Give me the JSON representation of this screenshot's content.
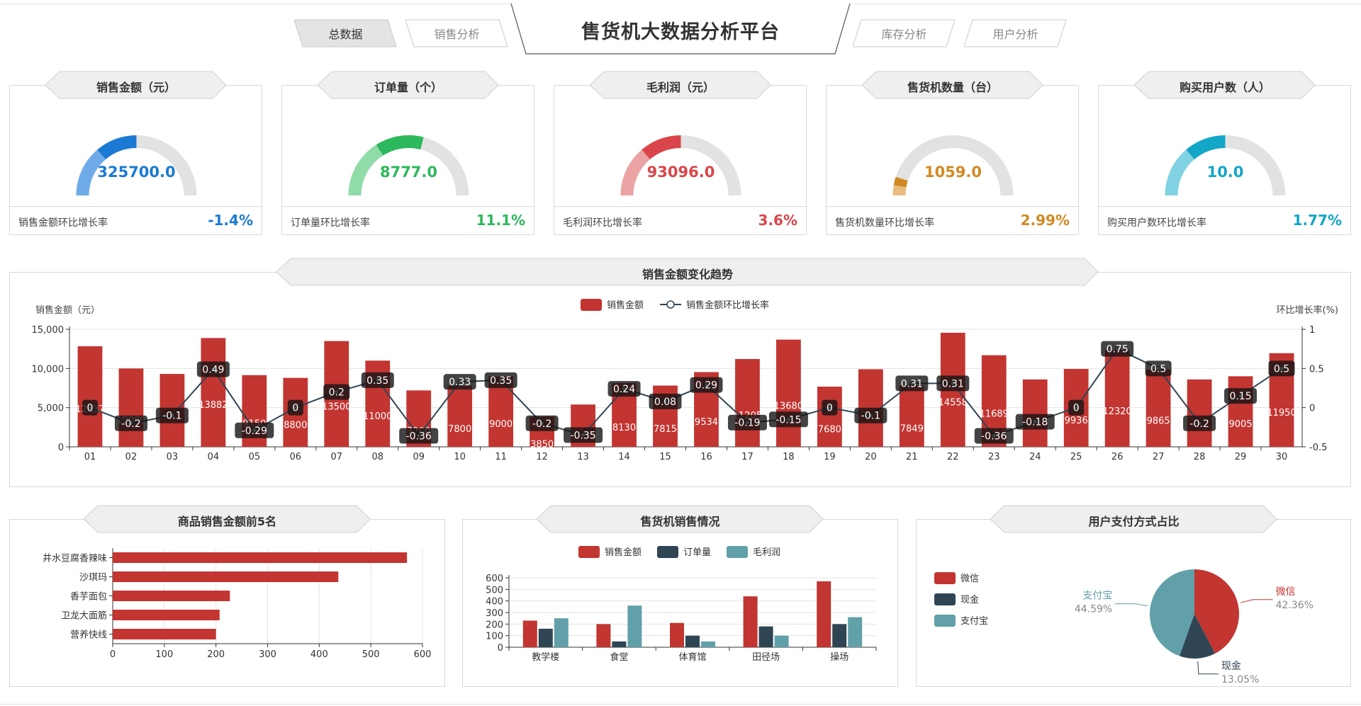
{
  "header": {
    "title": "售货机大数据分析平台",
    "tabs": [
      {
        "label": "总数据",
        "active": true
      },
      {
        "label": "销售分析",
        "active": false
      },
      {
        "label": "库存分析",
        "active": false
      },
      {
        "label": "用户分析",
        "active": false
      }
    ]
  },
  "kpis": [
    {
      "title": "销售金额（元）",
      "value": "325700.0",
      "fraction": 0.5,
      "rate_label": "销售金额环比增长率",
      "rate": "-1.4%",
      "color": "#1a7ad4",
      "light": "#6eaae8"
    },
    {
      "title": "订单量（个）",
      "value": "8777.0",
      "fraction": 0.58,
      "rate_label": "订单量环比增长率",
      "rate": "11.1%",
      "color": "#2cb85c",
      "light": "#8fdca8"
    },
    {
      "title": "毛利润（元）",
      "value": "93096.0",
      "fraction": 0.5,
      "rate_label": "毛利润环比增长率",
      "rate": "3.6%",
      "color": "#d9454a",
      "light": "#eba3a3"
    },
    {
      "title": "售货机数量（台）",
      "value": "1059.0",
      "fraction": 0.1,
      "rate_label": "售货机数量环比增长率",
      "rate": "2.99%",
      "color": "#d08a22",
      "light": "#e8be7e"
    },
    {
      "title": "购买用户数（人）",
      "value": "10.0",
      "fraction": 0.5,
      "rate_label": "购买用户数环比增长率",
      "rate": "1.77%",
      "color": "#12a6c7",
      "light": "#80d2e2"
    }
  ],
  "trend": {
    "title": "销售金额变化趋势",
    "chart_data": {
      "type": "bar",
      "categories": [
        "01",
        "02",
        "03",
        "04",
        "05",
        "06",
        "07",
        "08",
        "09",
        "10",
        "11",
        "12",
        "13",
        "14",
        "15",
        "16",
        "17",
        "18",
        "19",
        "20",
        "21",
        "22",
        "23",
        "24",
        "25",
        "26",
        "27",
        "28",
        "29",
        "30"
      ],
      "series": [
        {
          "name": "销售金额",
          "type": "bar",
          "color": "#c23531",
          "values": [
            12837,
            10000,
            9300,
            13882,
            9150,
            8800,
            13500,
            11000,
            7200,
            7800,
            9000,
            3850,
            5400,
            8130,
            7815,
            9534,
            11205,
            13680,
            7680,
            9900,
            7849,
            14558,
            11689,
            8600,
            9936,
            12320,
            9865,
            8600,
            9005,
            11950
          ]
        },
        {
          "name": "销售金额环比增长率",
          "type": "line",
          "color": "#2f4554",
          "values": [
            0,
            -0.2,
            -0.1,
            0.49,
            -0.29,
            0,
            0.2,
            0.35,
            -0.36,
            0.33,
            0.35,
            -0.2,
            -0.35,
            0.24,
            0.08,
            0.29,
            -0.19,
            -0.15,
            0,
            -0.1,
            0.31,
            0.31,
            -0.36,
            -0.18,
            0,
            0.75,
            0.5,
            -0.2,
            0.15,
            0.5
          ]
        }
      ],
      "bar_labels": [
        "12837",
        "10000",
        "",
        "13882",
        "9150",
        "8800",
        "13500",
        "11000",
        "7200",
        "7800",
        "9000",
        "3850",
        "",
        "8130",
        "7815",
        "9534",
        "11205",
        "13680",
        "7680",
        "",
        "7849",
        "14558",
        "11689",
        "",
        "9936",
        "12320",
        "9865",
        "",
        "9005",
        "11950"
      ],
      "ylabel": "销售金额（元）",
      "ylabel_right": "环比增长率(%)",
      "ylim": [
        0,
        15000
      ],
      "yticks": [
        "0",
        "5,000",
        "10,000",
        "15,000"
      ],
      "ylim_right": [
        -0.5,
        1
      ],
      "yticks_right": [
        "-0.5",
        "0",
        "0.5",
        "1"
      ],
      "legend": "top-center"
    }
  },
  "top5": {
    "title": "商品销售金额前5名",
    "chart_data": {
      "type": "bar",
      "orientation": "horizontal",
      "categories": [
        "井水豆腐香辣味",
        "沙琪玛",
        "香芋面包",
        "卫龙大面筋",
        "营养快线"
      ],
      "values": [
        570,
        437,
        227,
        207,
        200
      ],
      "xlim": [
        0,
        600
      ],
      "xticks": [
        "0",
        "100",
        "200",
        "300",
        "400",
        "500",
        "600"
      ],
      "color": "#c23531"
    }
  },
  "machine": {
    "title": "售货机销售情况",
    "chart_data": {
      "type": "bar",
      "categories": [
        "教学楼",
        "食堂",
        "体育馆",
        "田径场",
        "操场"
      ],
      "series": [
        {
          "name": "销售金额",
          "color": "#c23531",
          "values": [
            230,
            200,
            210,
            440,
            570
          ]
        },
        {
          "name": "订单量",
          "color": "#2f4554",
          "values": [
            160,
            50,
            100,
            180,
            200
          ]
        },
        {
          "name": "毛利润",
          "color": "#61a0a8",
          "values": [
            250,
            360,
            50,
            100,
            260
          ]
        }
      ],
      "ylim": [
        0,
        600
      ],
      "yticks": [
        "0",
        "100",
        "200",
        "300",
        "400",
        "500",
        "600"
      ],
      "legend": "top-center"
    }
  },
  "payment": {
    "title": "用户支付方式占比",
    "chart_data": {
      "type": "pie",
      "slices": [
        {
          "name": "微信",
          "value": 42.36,
          "label": "42.36%",
          "color": "#c23531"
        },
        {
          "name": "现金",
          "value": 13.05,
          "label": "13.05%",
          "color": "#2f4554"
        },
        {
          "name": "支付宝",
          "value": 44.59,
          "label": "44.59%",
          "color": "#61a0a8"
        }
      ],
      "legend": "left"
    }
  }
}
